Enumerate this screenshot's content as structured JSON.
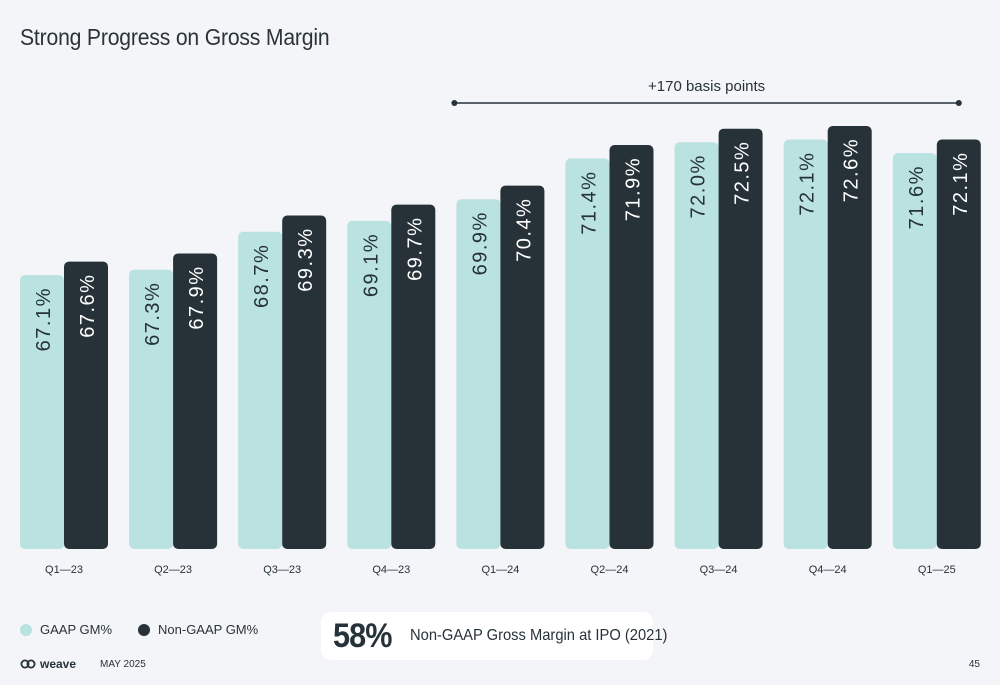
{
  "title": "Strong Progress on Gross Margin",
  "annotation": "+170 basis points",
  "chart_data": {
    "type": "bar",
    "categories": [
      "Q1—23",
      "Q2—23",
      "Q3—23",
      "Q4—23",
      "Q1—24",
      "Q2—24",
      "Q3—24",
      "Q4—24",
      "Q1—25"
    ],
    "series": [
      {
        "name": "GAAP GM%",
        "values": [
          67.1,
          67.3,
          68.7,
          69.1,
          69.9,
          71.4,
          72.0,
          72.1,
          71.6
        ],
        "labels": [
          "67.1%",
          "67.3%",
          "68.7%",
          "69.1%",
          "69.9%",
          "71.4%",
          "72.0%",
          "72.1%",
          "71.6%"
        ],
        "color": "#b9e2e0"
      },
      {
        "name": "Non-GAAP GM%",
        "values": [
          67.6,
          67.9,
          69.3,
          69.7,
          70.4,
          71.9,
          72.5,
          72.6,
          72.1
        ],
        "labels": [
          "67.6%",
          "67.9%",
          "69.3%",
          "69.7%",
          "70.4%",
          "71.9%",
          "72.5%",
          "72.6%",
          "72.1%"
        ],
        "color": "#263238"
      }
    ],
    "xlabel": "",
    "ylabel": "",
    "grid": false,
    "legend": "bottom-left",
    "annotation": {
      "text": "+170 basis points",
      "from": "Q1—24",
      "to": "Q1—25"
    }
  },
  "legend": {
    "gaap": "GAAP GM%",
    "nongaap": "Non-GAAP GM%"
  },
  "callout": {
    "value": "58%",
    "text": "Non-GAAP Gross Margin at IPO (2021)"
  },
  "footer": {
    "brand": "weave",
    "date": "MAY 2025",
    "page": "45"
  },
  "colors": {
    "gaap": "#b9e2e0",
    "nongaap": "#263238",
    "background": "#f3f5f8"
  },
  "icons": {
    "logo": "weave-logo-icon"
  }
}
